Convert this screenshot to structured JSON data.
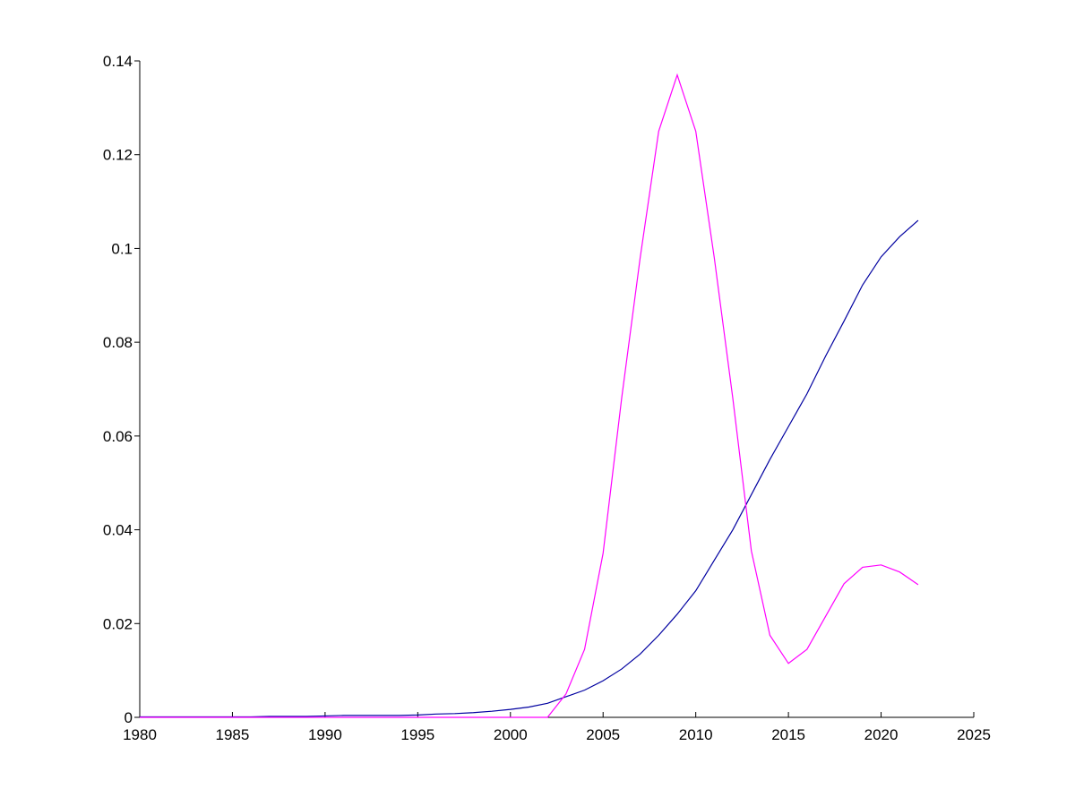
{
  "chart_data": {
    "type": "line",
    "x": [
      1980,
      1981,
      1982,
      1983,
      1984,
      1985,
      1986,
      1987,
      1988,
      1989,
      1990,
      1991,
      1992,
      1993,
      1994,
      1995,
      1996,
      1997,
      1998,
      1999,
      2000,
      2001,
      2002,
      2003,
      2004,
      2005,
      2006,
      2007,
      2008,
      2009,
      2010,
      2011,
      2012,
      2013,
      2014,
      2015,
      2016,
      2017,
      2018,
      2019,
      2020,
      2021,
      2022
    ],
    "series": [
      {
        "color": "#0000a0",
        "values": [
          0.0001,
          0.0001,
          0.0001,
          0.0001,
          0.0001,
          0.0001,
          0.0001,
          0.0002,
          0.0002,
          0.0002,
          0.0003,
          0.0004,
          0.0004,
          0.0004,
          0.0004,
          0.0005,
          0.0007,
          0.0008,
          0.001,
          0.0013,
          0.0017,
          0.0022,
          0.003,
          0.0044,
          0.0058,
          0.0078,
          0.0103,
          0.0135,
          0.0175,
          0.022,
          0.027,
          0.0335,
          0.04,
          0.0475,
          0.055,
          0.062,
          0.069,
          0.077,
          0.0845,
          0.0922,
          0.0982,
          0.1025,
          0.106
        ]
      },
      {
        "color": "#ff00ff",
        "values": [
          0,
          0,
          0,
          0,
          0,
          0,
          0,
          0,
          0,
          0,
          0,
          0,
          0,
          0,
          0,
          0,
          0,
          0,
          0,
          0,
          0,
          0,
          0,
          0.005,
          0.0145,
          0.035,
          0.068,
          0.098,
          0.125,
          0.137,
          0.125,
          0.098,
          0.068,
          0.0355,
          0.0175,
          0.0115,
          0.0145,
          0.0215,
          0.0285,
          0.032,
          0.0325,
          0.031,
          0.0283
        ]
      }
    ],
    "xlim": [
      1980,
      2025
    ],
    "xticks": [
      1980,
      1985,
      1990,
      1995,
      2000,
      2005,
      2010,
      2015,
      2020,
      2025
    ],
    "ylim": [
      0,
      0.14
    ],
    "yticks": [
      0,
      0.02,
      0.04,
      0.06,
      0.08,
      0.1,
      0.12,
      0.14
    ]
  }
}
